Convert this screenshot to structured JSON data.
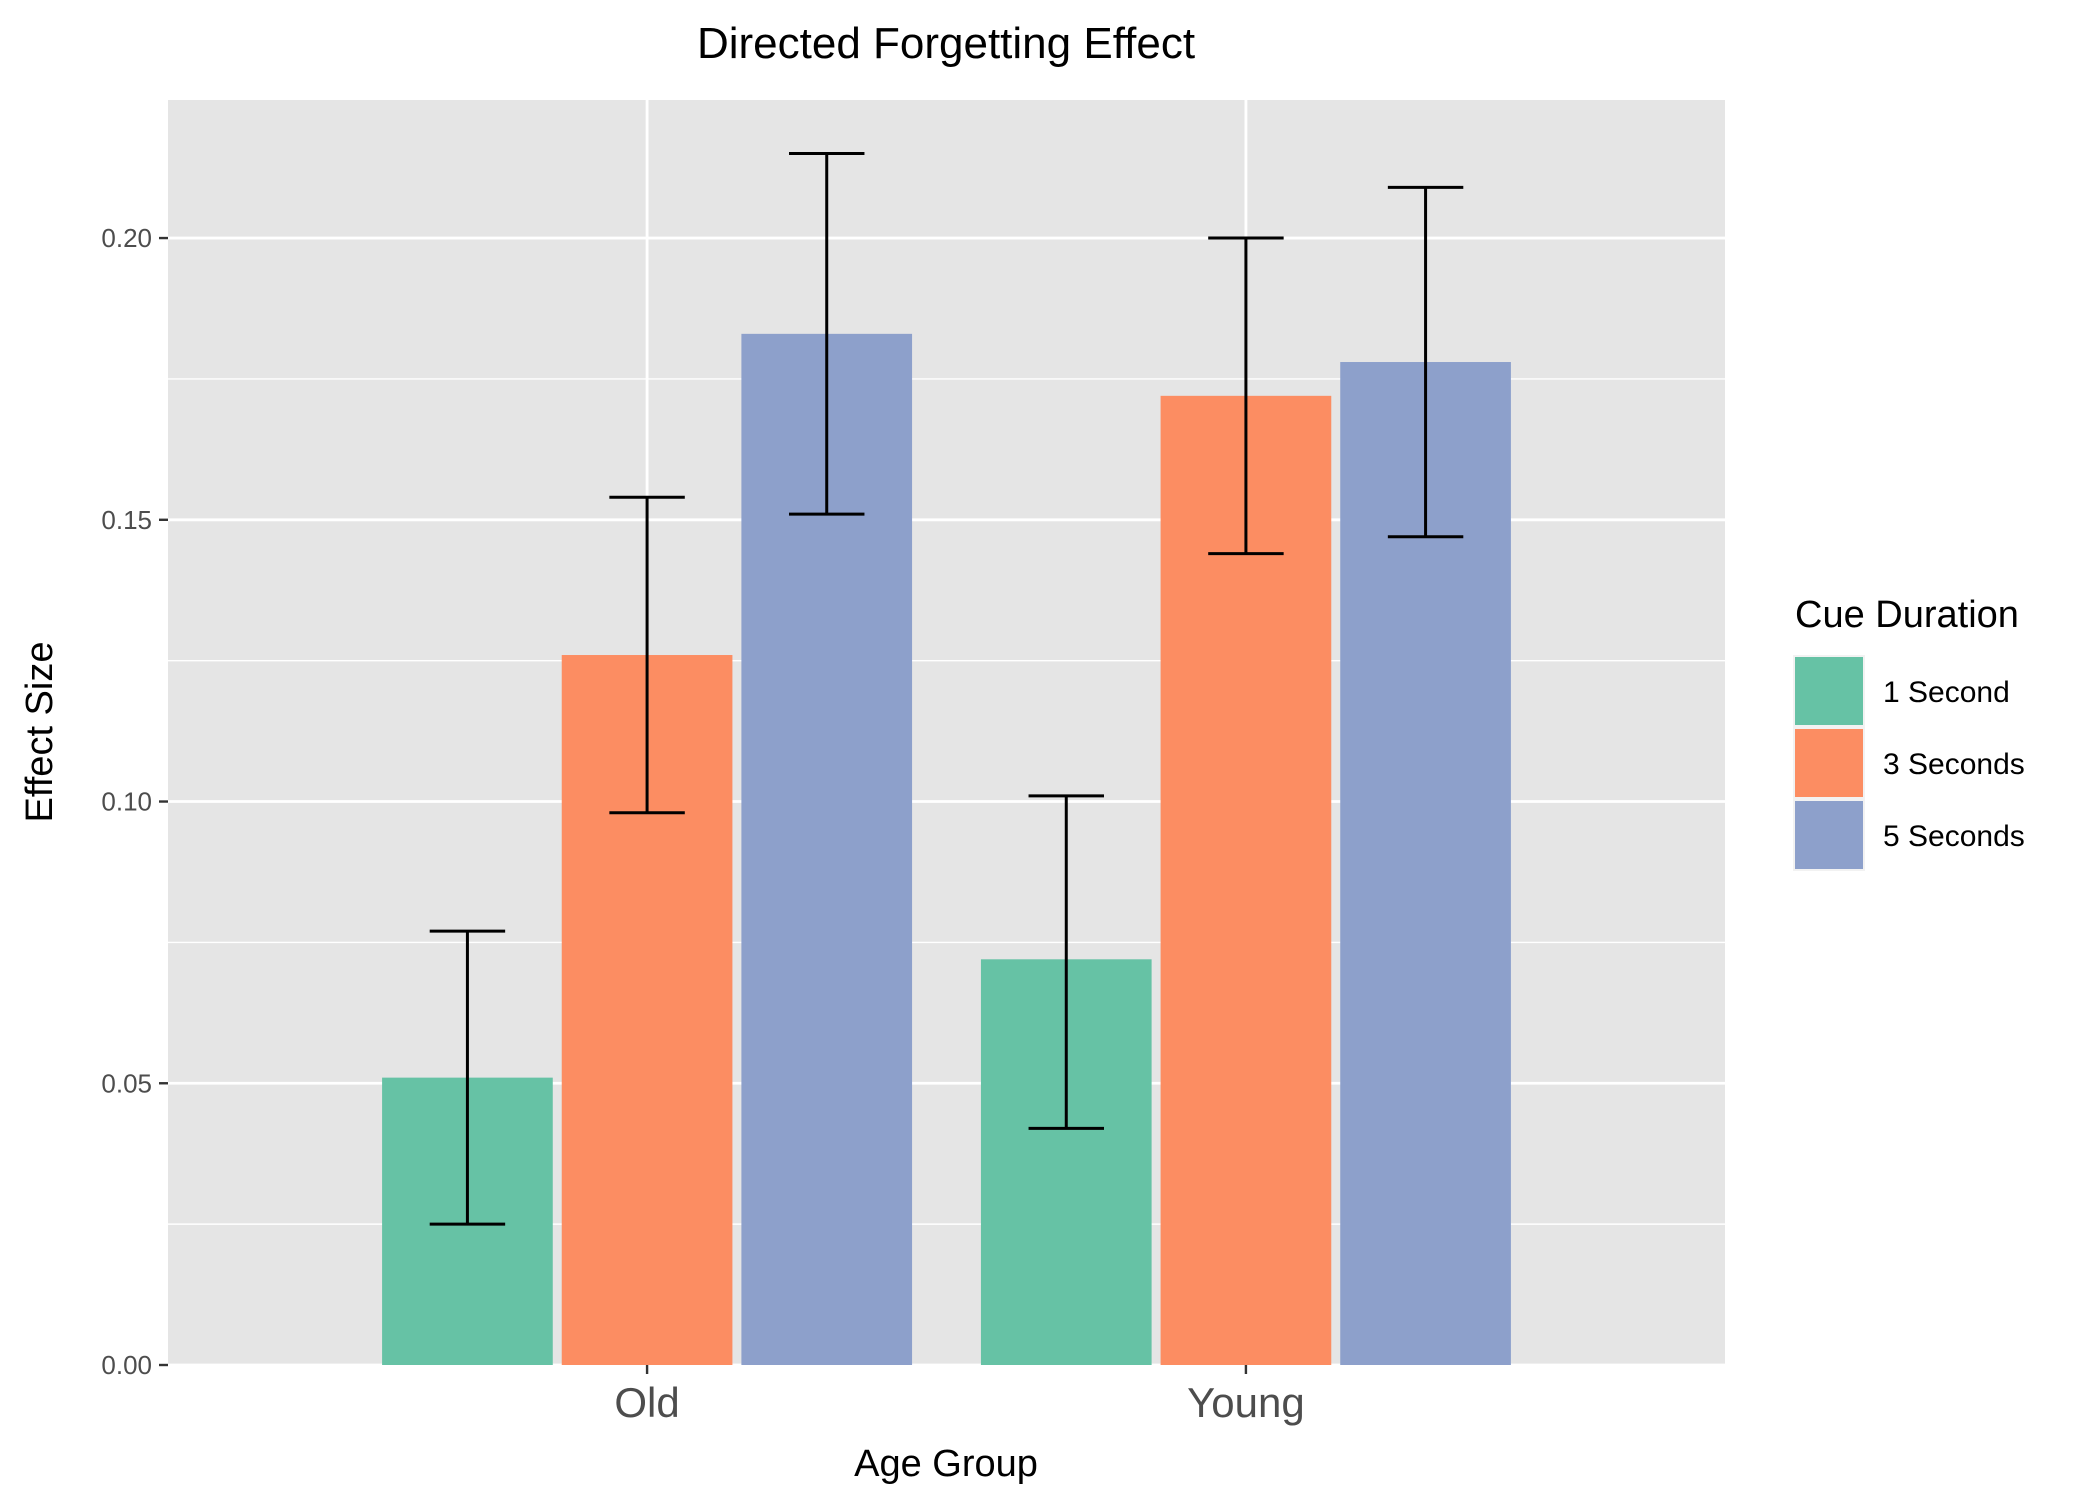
{
  "chart_data": {
    "type": "bar",
    "title": "Directed Forgetting Effect",
    "xlabel": "Age Group",
    "ylabel": "Effect Size",
    "categories": [
      "Old",
      "Young"
    ],
    "series": [
      {
        "name": "1 Second",
        "color": "#66c2a5",
        "values": [
          0.051,
          0.072
        ],
        "error_low": [
          0.025,
          0.042
        ],
        "error_high": [
          0.077,
          0.101
        ]
      },
      {
        "name": "3 Seconds",
        "color": "#fc8d62",
        "values": [
          0.126,
          0.172
        ],
        "error_low": [
          0.098,
          0.144
        ],
        "error_high": [
          0.154,
          0.2
        ]
      },
      {
        "name": "5 Seconds",
        "color": "#8da0cb",
        "values": [
          0.183,
          0.178
        ],
        "error_low": [
          0.151,
          0.147
        ],
        "error_high": [
          0.215,
          0.209
        ]
      }
    ],
    "ylim": [
      0,
      0.2245
    ],
    "yticks": [
      0.0,
      0.05,
      0.1,
      0.15,
      0.2
    ],
    "ytick_labels": [
      "0.00",
      "0.05",
      "0.10",
      "0.15",
      "0.20"
    ],
    "grid": true,
    "panel_background": "#e5e5e5",
    "grid_color": "#ffffff",
    "legend": {
      "title": "Cue Duration",
      "position": "right"
    }
  }
}
